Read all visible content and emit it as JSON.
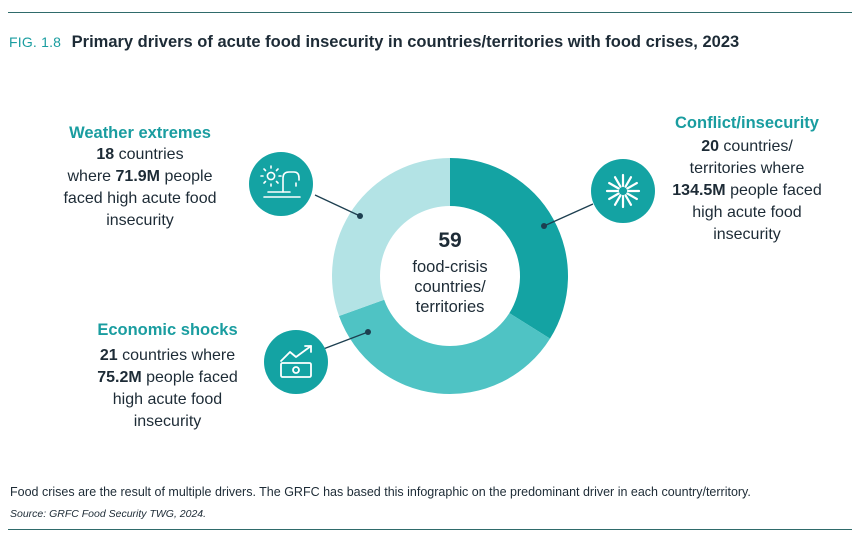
{
  "figure": {
    "label": "FIG. 1.8",
    "title": "Primary drivers of acute food insecurity in countries/territories with food crises, 2023"
  },
  "center": {
    "value": "59",
    "text": [
      "food-crisis",
      "countries/",
      "territories"
    ]
  },
  "drivers": {
    "conflict": {
      "heading": "Conflict/insecurity",
      "count": "20",
      "pre": " countries/",
      "mid": "territories where",
      "people": "134.5M",
      "post": " people faced",
      "tail1": "high acute food",
      "tail2": "insecurity"
    },
    "weather": {
      "heading": "Weather extremes",
      "count": "18",
      "pre": " countries",
      "mid_pre": "where ",
      "people": "71.9M",
      "post": " people",
      "tail1": "faced high acute food",
      "tail2": "insecurity"
    },
    "economic": {
      "heading": "Economic shocks",
      "count": "21",
      "pre": " countries where",
      "people": "75.2M",
      "post": " people faced",
      "tail1": "high acute food",
      "tail2": "insecurity"
    }
  },
  "footer": {
    "note": "Food crises are the result of multiple drivers. The GRFC has based this infographic on the predominant driver in each country/territory.",
    "source": "Source: GRFC Food Security TWG, 2024."
  },
  "colors": {
    "conflict": "#14a3a3",
    "economic": "#4fc3c4",
    "weather": "#b3e3e5",
    "icon_bg": "#14a3a3",
    "heading": "#1a9da0",
    "leader": "#1d3f50"
  },
  "icons": {
    "conflict": "burst-icon",
    "weather": "sun-faucet-icon",
    "economic": "money-chart-icon"
  },
  "chart_data": {
    "type": "pie",
    "categories": [
      "Conflict/insecurity",
      "Economic shocks",
      "Weather extremes"
    ],
    "values": [
      20,
      21,
      18
    ],
    "total": 59,
    "units": "countries/territories",
    "people_millions": [
      134.5,
      75.2,
      71.9
    ],
    "donut": true,
    "start": "12 o'clock, clockwise"
  }
}
